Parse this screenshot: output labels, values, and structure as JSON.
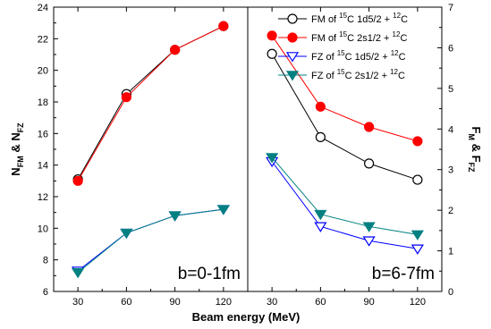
{
  "chart_data": [
    {
      "panel": "left",
      "type": "line",
      "panel_label": "b=0-1fm",
      "x": [
        30,
        60,
        90,
        120
      ],
      "x_ticks": [
        "30",
        "60",
        "90",
        "120"
      ],
      "xlim": [
        15,
        135
      ],
      "ylim": [
        6,
        24
      ],
      "y_ticks": [
        "6",
        "8",
        "10",
        "12",
        "14",
        "16",
        "18",
        "20",
        "22",
        "24"
      ],
      "ylabel": {
        "main": "N",
        "sub1": "FM",
        "mid": " & N",
        "sub2": "FZ"
      },
      "series": [
        {
          "key": "fm_1d52",
          "values": [
            13.1,
            18.5,
            21.3,
            22.8
          ],
          "color": "#000000",
          "marker": "circle-open"
        },
        {
          "key": "fm_2s12",
          "values": [
            13.0,
            18.3,
            21.3,
            22.8
          ],
          "color": "#ff0000",
          "marker": "circle-filled"
        },
        {
          "key": "fz_1d52",
          "values": [
            7.3,
            9.7,
            10.8,
            11.2
          ],
          "color": "#0000ff",
          "marker": "triangle-open"
        },
        {
          "key": "fz_2s12",
          "values": [
            7.2,
            9.7,
            10.8,
            11.2
          ],
          "color": "#008080",
          "marker": "triangle-filled"
        }
      ]
    },
    {
      "panel": "right",
      "type": "line",
      "panel_label": "b=6-7fm",
      "x": [
        30,
        60,
        90,
        120
      ],
      "x_ticks": [
        "30",
        "60",
        "90",
        "120"
      ],
      "xlim": [
        15,
        135
      ],
      "ylim": [
        0,
        7
      ],
      "y_ticks": [
        "0",
        "1",
        "2",
        "3",
        "4",
        "5",
        "6",
        "7"
      ],
      "ylabel": {
        "main1": "F",
        "sub1": "M",
        "mid": " & F",
        "sub2": "FZ"
      },
      "legend_position": "top-right",
      "series": [
        {
          "key": "fm_1d52",
          "values": [
            5.85,
            3.8,
            3.15,
            2.75
          ],
          "color": "#000000",
          "marker": "circle-open"
        },
        {
          "key": "fm_2s12",
          "values": [
            6.3,
            4.55,
            4.05,
            3.7
          ],
          "color": "#ff0000",
          "marker": "circle-filled"
        },
        {
          "key": "fz_1d52",
          "values": [
            3.2,
            1.6,
            1.25,
            1.05
          ],
          "color": "#0000ff",
          "marker": "triangle-open"
        },
        {
          "key": "fz_2s12",
          "values": [
            3.3,
            1.9,
            1.6,
            1.4
          ],
          "color": "#008080",
          "marker": "triangle-filled"
        }
      ]
    }
  ],
  "legend": [
    {
      "key": "fm_1d52",
      "prefix": "FM of ",
      "sup": "15",
      "mid": "C 1d5/2 + ",
      "sup2": "12",
      "end": "C"
    },
    {
      "key": "fm_2s12",
      "prefix": "FM of ",
      "sup": "15",
      "mid": "C 2s1/2 + ",
      "sup2": "12",
      "end": "C"
    },
    {
      "key": "fz_1d52",
      "prefix": "FZ  of ",
      "sup": "15",
      "mid": "C 1d5/2 + ",
      "sup2": "12",
      "end": "C"
    },
    {
      "key": "fz_2s12",
      "prefix": "FZ  of ",
      "sup": "15",
      "mid": "C 2s1/2 + ",
      "sup2": "12",
      "end": "C"
    }
  ],
  "xlabel": "Beam energy (MeV)"
}
